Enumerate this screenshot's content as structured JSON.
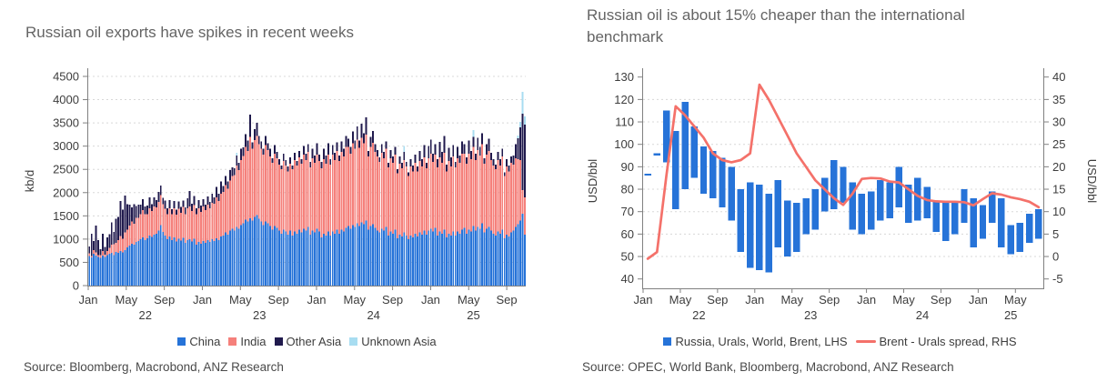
{
  "accent_colors": {
    "china_blue": "#2673d8",
    "india_salmon": "#f5807b",
    "other_asia_navy": "#201a4d",
    "unknown_asia_lightblue": "#a8ddf1",
    "spread_line_red": "#f4716a",
    "axis_gray": "#808080",
    "grid_gray": "#d8d8d8"
  },
  "chart_data": [
    {
      "type": "bar",
      "stacked": true,
      "title": "Russian oil exports have spikes in recent weeks",
      "ylabel": "kb/d",
      "source": "Source: Bloomberg, Macrobond, ANZ Research",
      "ylim": [
        0,
        4500
      ],
      "ytick_step": 500,
      "ytick_labels": [
        "0",
        "500",
        "1000",
        "1500",
        "2000",
        "2500",
        "3000",
        "3500",
        "4000",
        "4500"
      ],
      "frequency": "weekly",
      "span": "Jan 2022 - Oct 2025",
      "months_total": 46,
      "xticks": {
        "labels": [
          "Jan",
          "May",
          "Sep",
          "Jan",
          "May",
          "Sep",
          "Jan",
          "May",
          "Sep",
          "Jan",
          "May",
          "Sep"
        ],
        "positions": [
          0,
          4,
          8,
          12,
          16,
          20,
          24,
          28,
          32,
          36,
          40,
          44
        ],
        "year_labels": [
          "22",
          "23",
          "24",
          "25"
        ],
        "year_positions": [
          6,
          18,
          30,
          40.5
        ]
      },
      "legend_position": "bottom",
      "grid": true,
      "series": [
        {
          "name": "China",
          "color": "#2673d8",
          "values": [
            640,
            610,
            680,
            650,
            620,
            600,
            650,
            620,
            660,
            680,
            700,
            660,
            720,
            700,
            740,
            710,
            760,
            820,
            860,
            900,
            880,
            940,
            960,
            1000,
            1040,
            980,
            1020,
            1080,
            1050,
            1100,
            1120,
            1180,
            1300,
            1150,
            1080,
            1000,
            1060,
            980,
            1040,
            950,
            1010,
            970,
            1030,
            920,
            980,
            1000,
            950,
            1010,
            880,
            940,
            900,
            960,
            920,
            980,
            940,
            1000,
            960,
            1020,
            980,
            1060,
            1080,
            1140,
            1100,
            1180,
            1220,
            1180,
            1260,
            1220,
            1300,
            1340,
            1420,
            1380,
            1450,
            1400,
            1480,
            1520,
            1440,
            1380,
            1300,
            1380,
            1340,
            1280,
            1200,
            1280,
            1240,
            1180,
            1120,
            1200,
            1160,
            1100,
            1180,
            1080,
            1160,
            1120,
            1200,
            1140,
            1220,
            1180,
            1260,
            1100,
            1180,
            1140,
            1220,
            1160,
            1040,
            1120,
            1080,
            1160,
            1080,
            1160,
            1120,
            1200,
            1120,
            1200,
            1160,
            1240,
            1280,
            1220,
            1300,
            1260,
            1340,
            1280,
            1360,
            1320,
            1400,
            1200,
            1280,
            1320,
            1240,
            1180,
            1140,
            1220,
            1180,
            1260,
            1080,
            1160,
            1120,
            1200,
            1020,
            1100,
            1060,
            1140,
            1080,
            1000,
            1080,
            1040,
            1120,
            1060,
            1140,
            1100,
            1180,
            1100,
            1180,
            1220,
            1160,
            1240,
            1080,
            1160,
            1120,
            1200,
            1040,
            1120,
            1080,
            1160,
            1080,
            1160,
            1120,
            1200,
            1240,
            1120,
            1200,
            1160,
            1280,
            1180,
            1260,
            1220,
            1340,
            1140,
            1220,
            1260,
            1180,
            1120,
            1080,
            1160,
            1120,
            1200,
            1020,
            1100,
            1060,
            1140,
            1180,
            1260,
            1320,
            1400,
            1550,
            1100
          ]
        },
        {
          "name": "India",
          "color": "#f5807b",
          "values": [
            50,
            30,
            80,
            60,
            40,
            60,
            90,
            50,
            80,
            130,
            180,
            230,
            200,
            280,
            330,
            300,
            380,
            380,
            430,
            480,
            450,
            520,
            500,
            540,
            580,
            560,
            520,
            580,
            550,
            600,
            560,
            620,
            650,
            600,
            570,
            540,
            600,
            560,
            620,
            580,
            640,
            600,
            660,
            620,
            680,
            700,
            650,
            720,
            660,
            720,
            680,
            740,
            700,
            760,
            720,
            780,
            800,
            880,
            840,
            920,
            940,
            1020,
            980,
            1080,
            1140,
            1200,
            1320,
            1260,
            1400,
            1450,
            1560,
            1520,
            1750,
            1540,
            1650,
            1700,
            1600,
            1560,
            1520,
            1640,
            1580,
            1500,
            1440,
            1560,
            1500,
            1420,
            1380,
            1480,
            1420,
            1360,
            1440,
            1420,
            1540,
            1460,
            1560,
            1480,
            1600,
            1520,
            1620,
            1440,
            1560,
            1500,
            1600,
            1520,
            1480,
            1600,
            1540,
            1660,
            1520,
            1660,
            1580,
            1700,
            1560,
            1680,
            1620,
            1740,
            1700,
            1620,
            1760,
            1680,
            1800,
            1680,
            1820,
            1740,
            1850,
            1580,
            1700,
            1750,
            1640,
            1600,
            1520,
            1640,
            1560,
            1680,
            1460,
            1580,
            1520,
            1620,
            1400,
            1520,
            1460,
            1560,
            1480,
            1360,
            1480,
            1420,
            1520,
            1400,
            1540,
            1460,
            1580,
            1420,
            1560,
            1620,
            1500,
            1580,
            1460,
            1600,
            1520,
            1660,
            1420,
            1560,
            1480,
            1620,
            1460,
            1580,
            1520,
            1640,
            1600,
            1500,
            1640,
            1560,
            1700,
            1520,
            1660,
            1580,
            1700,
            1480,
            1600,
            1640,
            1520,
            1460,
            1420,
            1540,
            1460,
            1580,
            1340,
            1460,
            1400,
            1500,
            1420,
            1480,
            1400,
            1300,
            500,
            800
          ]
        },
        {
          "name": "Other Asia",
          "color": "#201a4d",
          "values": [
            150,
            480,
            200,
            580,
            320,
            120,
            380,
            160,
            300,
            300,
            480,
            260,
            520,
            500,
            750,
            620,
            800,
            550,
            450,
            300,
            420,
            250,
            280,
            200,
            240,
            160,
            180,
            240,
            150,
            200,
            160,
            220,
            200,
            140,
            180,
            120,
            180,
            100,
            160,
            100,
            160,
            120,
            140,
            140,
            220,
            330,
            160,
            200,
            120,
            180,
            140,
            160,
            120,
            180,
            140,
            200,
            140,
            220,
            160,
            260,
            120,
            200,
            160,
            220,
            180,
            140,
            220,
            160,
            240,
            180,
            280,
            220,
            480,
            140,
            240,
            280,
            180,
            160,
            120,
            200,
            140,
            160,
            100,
            180,
            140,
            120,
            80,
            160,
            120,
            100,
            140,
            80,
            160,
            100,
            140,
            100,
            180,
            140,
            160,
            120,
            200,
            160,
            240,
            140,
            140,
            220,
            180,
            240,
            120,
            200,
            160,
            180,
            120,
            220,
            160,
            240,
            180,
            140,
            260,
            180,
            280,
            160,
            300,
            220,
            370,
            120,
            220,
            260,
            160,
            140,
            100,
            180,
            140,
            160,
            100,
            180,
            140,
            160,
            80,
            160,
            120,
            180,
            100,
            80,
            160,
            120,
            180,
            100,
            220,
            160,
            260,
            120,
            260,
            300,
            180,
            220,
            180,
            330,
            240,
            360,
            140,
            280,
            200,
            240,
            120,
            240,
            160,
            260,
            200,
            140,
            280,
            180,
            220,
            140,
            260,
            180,
            240,
            120,
            220,
            260,
            160,
            140,
            100,
            180,
            140,
            160,
            80,
            160,
            120,
            140,
            200,
            300,
            450,
            700,
            1650,
            1560
          ]
        },
        {
          "name": "Unknown Asia",
          "color": "#a8ddf1",
          "values": [
            0,
            0,
            0,
            0,
            0,
            0,
            0,
            0,
            0,
            0,
            0,
            0,
            0,
            0,
            0,
            0,
            0,
            0,
            0,
            0,
            0,
            0,
            0,
            0,
            0,
            0,
            0,
            0,
            0,
            0,
            0,
            0,
            0,
            0,
            0,
            0,
            0,
            0,
            0,
            0,
            0,
            0,
            0,
            0,
            0,
            0,
            0,
            0,
            0,
            0,
            0,
            0,
            0,
            0,
            0,
            0,
            0,
            0,
            0,
            0,
            0,
            0,
            0,
            0,
            0,
            0,
            60,
            0,
            0,
            0,
            0,
            0,
            0,
            0,
            0,
            0,
            0,
            0,
            0,
            0,
            0,
            0,
            0,
            0,
            0,
            0,
            0,
            0,
            0,
            0,
            0,
            0,
            0,
            0,
            0,
            0,
            0,
            0,
            0,
            0,
            0,
            0,
            0,
            0,
            0,
            0,
            0,
            0,
            0,
            0,
            0,
            0,
            0,
            0,
            0,
            0,
            0,
            0,
            0,
            0,
            0,
            0,
            0,
            0,
            0,
            0,
            0,
            0,
            0,
            0,
            0,
            0,
            0,
            0,
            0,
            0,
            0,
            0,
            0,
            0,
            0,
            120,
            0,
            0,
            0,
            0,
            0,
            0,
            0,
            0,
            0,
            0,
            0,
            0,
            0,
            0,
            0,
            0,
            0,
            0,
            0,
            0,
            0,
            0,
            0,
            0,
            0,
            0,
            0,
            0,
            0,
            0,
            150,
            0,
            0,
            0,
            0,
            0,
            0,
            0,
            0,
            0,
            0,
            0,
            0,
            0,
            0,
            0,
            0,
            0,
            0,
            0,
            60,
            120,
            470,
            180
          ]
        }
      ]
    },
    {
      "type": "range-bar-and-line",
      "title": "Russian oil is about 15% cheaper than the international benchmark",
      "ylabel_left": "USD/bbl",
      "ylabel_right": "USD/bbl",
      "source": "Source: OPEC, World Bank, Bloomberg, Macrobond, ANZ Research",
      "left_ylim": [
        40,
        130
      ],
      "left_ytick_step": 10,
      "left_ytick_labels": [
        "40",
        "50",
        "60",
        "70",
        "80",
        "90",
        "100",
        "110",
        "120",
        "130"
      ],
      "right_ylim": [
        -5,
        40
      ],
      "right_ytick_step": 5,
      "right_ytick_labels": [
        "-5",
        "0",
        "5",
        "10",
        "15",
        "20",
        "25",
        "30",
        "35",
        "40"
      ],
      "frequency": "monthly",
      "span": "Jan 2022 - Jul 2025",
      "months_total": 43,
      "xticks": {
        "labels": [
          "Jan",
          "May",
          "Sep",
          "Jan",
          "May",
          "Sep",
          "Jan",
          "May",
          "Sep",
          "Jan",
          "May"
        ],
        "positions": [
          0,
          4,
          8,
          12,
          16,
          20,
          24,
          28,
          32,
          36,
          40
        ],
        "year_labels": [
          "22",
          "23",
          "24",
          "25"
        ],
        "year_positions": [
          6,
          18,
          30,
          39.5
        ]
      },
      "grid": true,
      "bars": {
        "name": "Russia, Urals, World, Brent, LHS",
        "color": "#2673d8",
        "axis": "left",
        "low": [
          86,
          95,
          92,
          71,
          80,
          85,
          78,
          76,
          72,
          66,
          52,
          45,
          44,
          43,
          54,
          50,
          52,
          60,
          62,
          70,
          71,
          74,
          62,
          60,
          62,
          66,
          67,
          72,
          65,
          66,
          67,
          61,
          57,
          60,
          65,
          54,
          58,
          65,
          54,
          51,
          52,
          56,
          58
        ],
        "high": [
          87,
          96,
          115,
          106,
          119,
          108,
          99,
          97,
          94,
          90,
          80,
          83,
          82,
          78,
          84,
          75,
          74,
          76,
          80,
          85,
          93,
          90,
          83,
          78,
          79,
          84,
          83,
          90,
          82,
          85,
          81,
          75,
          75,
          74,
          80,
          76,
          73,
          79,
          76,
          64,
          65,
          69,
          71
        ]
      },
      "line": {
        "name": "Brent - Urals spread, RHS",
        "color": "#f4716a",
        "axis": "right",
        "values": [
          -0.5,
          1,
          18,
          33.5,
          31.5,
          29,
          26.5,
          23,
          21.5,
          21,
          21.5,
          23,
          38.3,
          35,
          31,
          27,
          23,
          20,
          17,
          15,
          13,
          11.5,
          14,
          17.3,
          17.5,
          17.4,
          16.7,
          16.5,
          15,
          13.5,
          12.6,
          12.3,
          12.2,
          12.2,
          12.1,
          11.4,
          12.8,
          14.1,
          13.8,
          13.2,
          12.8,
          12.2,
          11
        ]
      }
    }
  ]
}
